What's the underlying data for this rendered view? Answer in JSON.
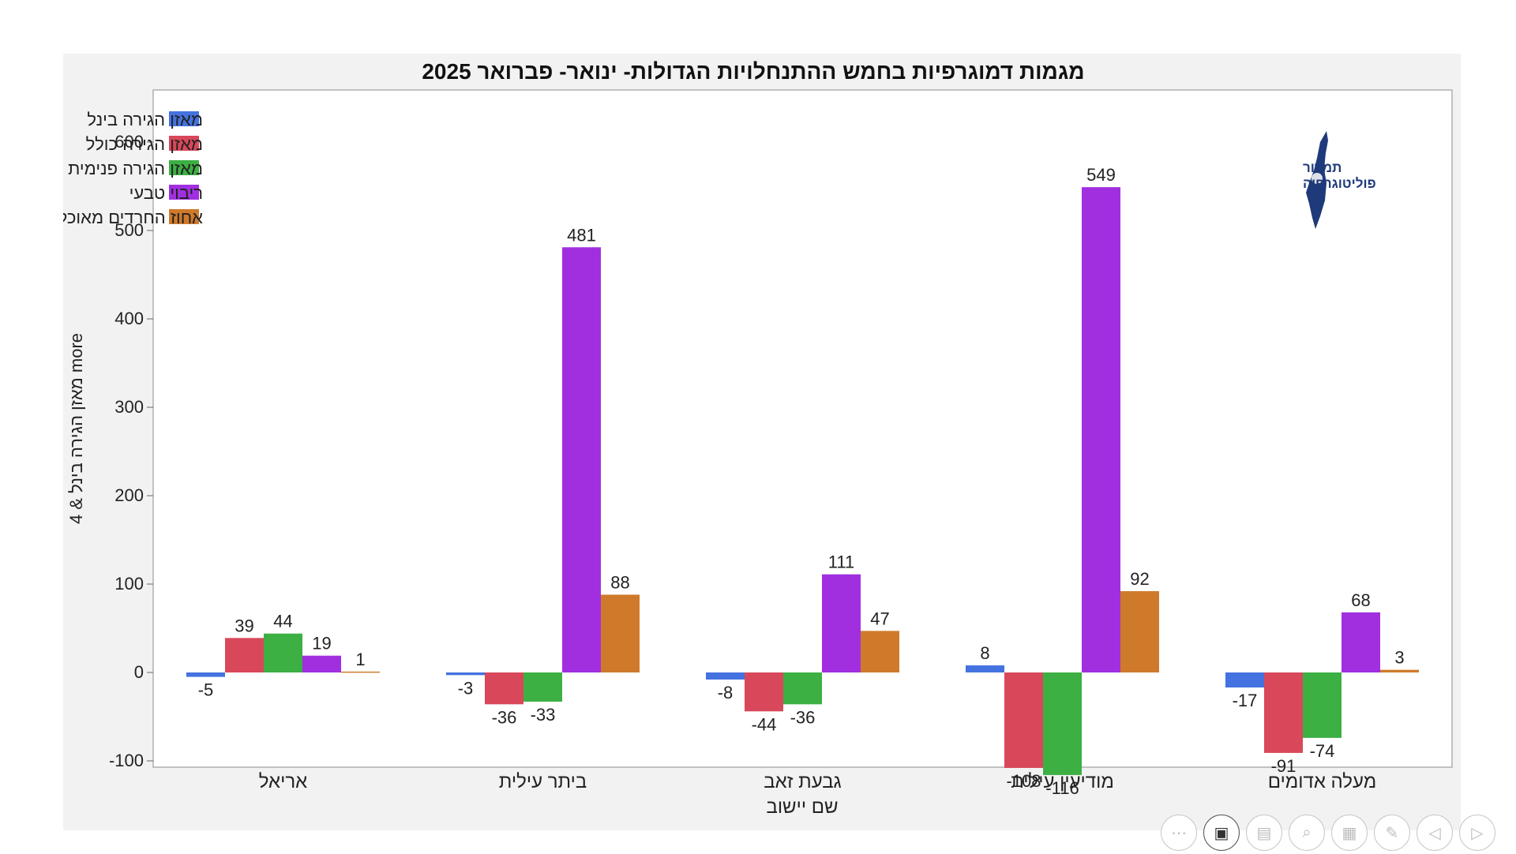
{
  "chart_data": {
    "type": "bar",
    "title": "מגמות דמוגרפיות בחמש ההתנחלויות הגדולות- ינואר- פברואר 2025",
    "xlabel": "שם יישוב",
    "ylabel": "מאזן הגירה בינל & 4 more",
    "ylim": [
      -165,
      600
    ],
    "yticks": [
      600,
      500,
      400,
      300,
      200,
      100,
      0,
      -100
    ],
    "legend_position": "top-left",
    "categories": [
      "אריאל",
      "ביתר עילית",
      "גבעת זאב",
      "מודיעין עילית",
      "מעלה אדומים"
    ],
    "series": [
      {
        "name": "מאזן הגירה בינל",
        "color": "#4472e0",
        "values": [
          -5,
          -3,
          -8,
          8,
          -17
        ]
      },
      {
        "name": "מאזן הגירה כולל",
        "color": "#d8485a",
        "values": [
          39,
          -36,
          -44,
          -108,
          -91
        ]
      },
      {
        "name": "מאזן הגירה פנימית",
        "color": "#3cb043",
        "values": [
          44,
          -33,
          -36,
          -116,
          -74
        ]
      },
      {
        "name": "ריבוי טבעי",
        "color": "#a12fe0",
        "values": [
          19,
          481,
          111,
          549,
          68
        ]
      },
      {
        "name": "אחוז החרדים מאוכלוסיית היישוב",
        "color": "#cf7a2b",
        "values": [
          1,
          88,
          47,
          92,
          3
        ]
      }
    ]
  },
  "logo": {
    "line1": "תמרור",
    "line2": "פוליטוגרפיה"
  },
  "controls": [
    {
      "icon": "more-icon",
      "glyph": "⋯"
    },
    {
      "icon": "camera-icon",
      "glyph": "▣"
    },
    {
      "icon": "subtitles-icon",
      "glyph": "▤"
    },
    {
      "icon": "zoom-icon",
      "glyph": "⌕"
    },
    {
      "icon": "slides-icon",
      "glyph": "▦"
    },
    {
      "icon": "pen-icon",
      "glyph": "✎"
    },
    {
      "icon": "previous-icon",
      "glyph": "◁"
    },
    {
      "icon": "next-icon",
      "glyph": "▷"
    }
  ]
}
